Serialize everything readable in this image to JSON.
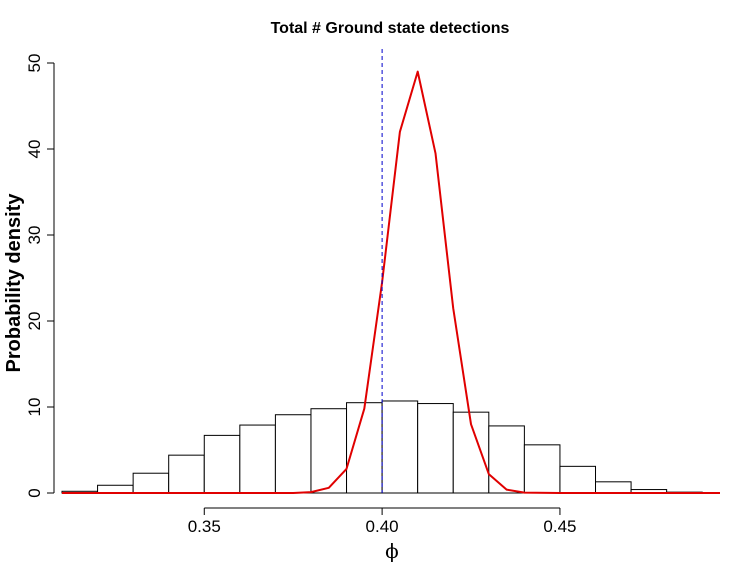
{
  "chart_data": {
    "type": "bar",
    "title": "Total #  Ground state detections",
    "xlabel": "ϕ",
    "ylabel": "Probability density",
    "xlim": [
      0.31,
      0.495
    ],
    "ylim": [
      0,
      50
    ],
    "x_ticks": [
      0.35,
      0.4,
      0.45
    ],
    "x_tick_labels": [
      "0.35",
      "0.40",
      "0.45"
    ],
    "y_ticks": [
      0,
      10,
      20,
      30,
      40,
      50
    ],
    "y_tick_labels": [
      "0",
      "10",
      "20",
      "30",
      "40",
      "50"
    ],
    "grid": false,
    "legend": "none",
    "histogram": {
      "bin_edges": [
        0.31,
        0.32,
        0.33,
        0.34,
        0.35,
        0.36,
        0.37,
        0.38,
        0.39,
        0.4,
        0.41,
        0.42,
        0.43,
        0.44,
        0.45,
        0.46,
        0.47,
        0.48,
        0.49
      ],
      "density": [
        0.2,
        0.9,
        2.3,
        4.4,
        6.7,
        7.9,
        9.1,
        9.8,
        10.5,
        10.7,
        10.4,
        9.4,
        7.8,
        5.6,
        3.1,
        1.3,
        0.4,
        0.1
      ]
    },
    "series": [
      {
        "type": "line",
        "color": "#e00000",
        "x": [
          0.31,
          0.375,
          0.38,
          0.385,
          0.39,
          0.395,
          0.4,
          0.405,
          0.41,
          0.415,
          0.42,
          0.425,
          0.43,
          0.435,
          0.44,
          0.45,
          0.495
        ],
        "values": [
          0,
          0,
          0.1,
          0.6,
          2.8,
          9.8,
          24.5,
          42.0,
          49.0,
          39.5,
          21.5,
          8.0,
          2.2,
          0.4,
          0.05,
          0,
          0
        ]
      }
    ],
    "reference_line": {
      "x": 0.4,
      "color": "#0000cc",
      "style": "dashed"
    }
  }
}
